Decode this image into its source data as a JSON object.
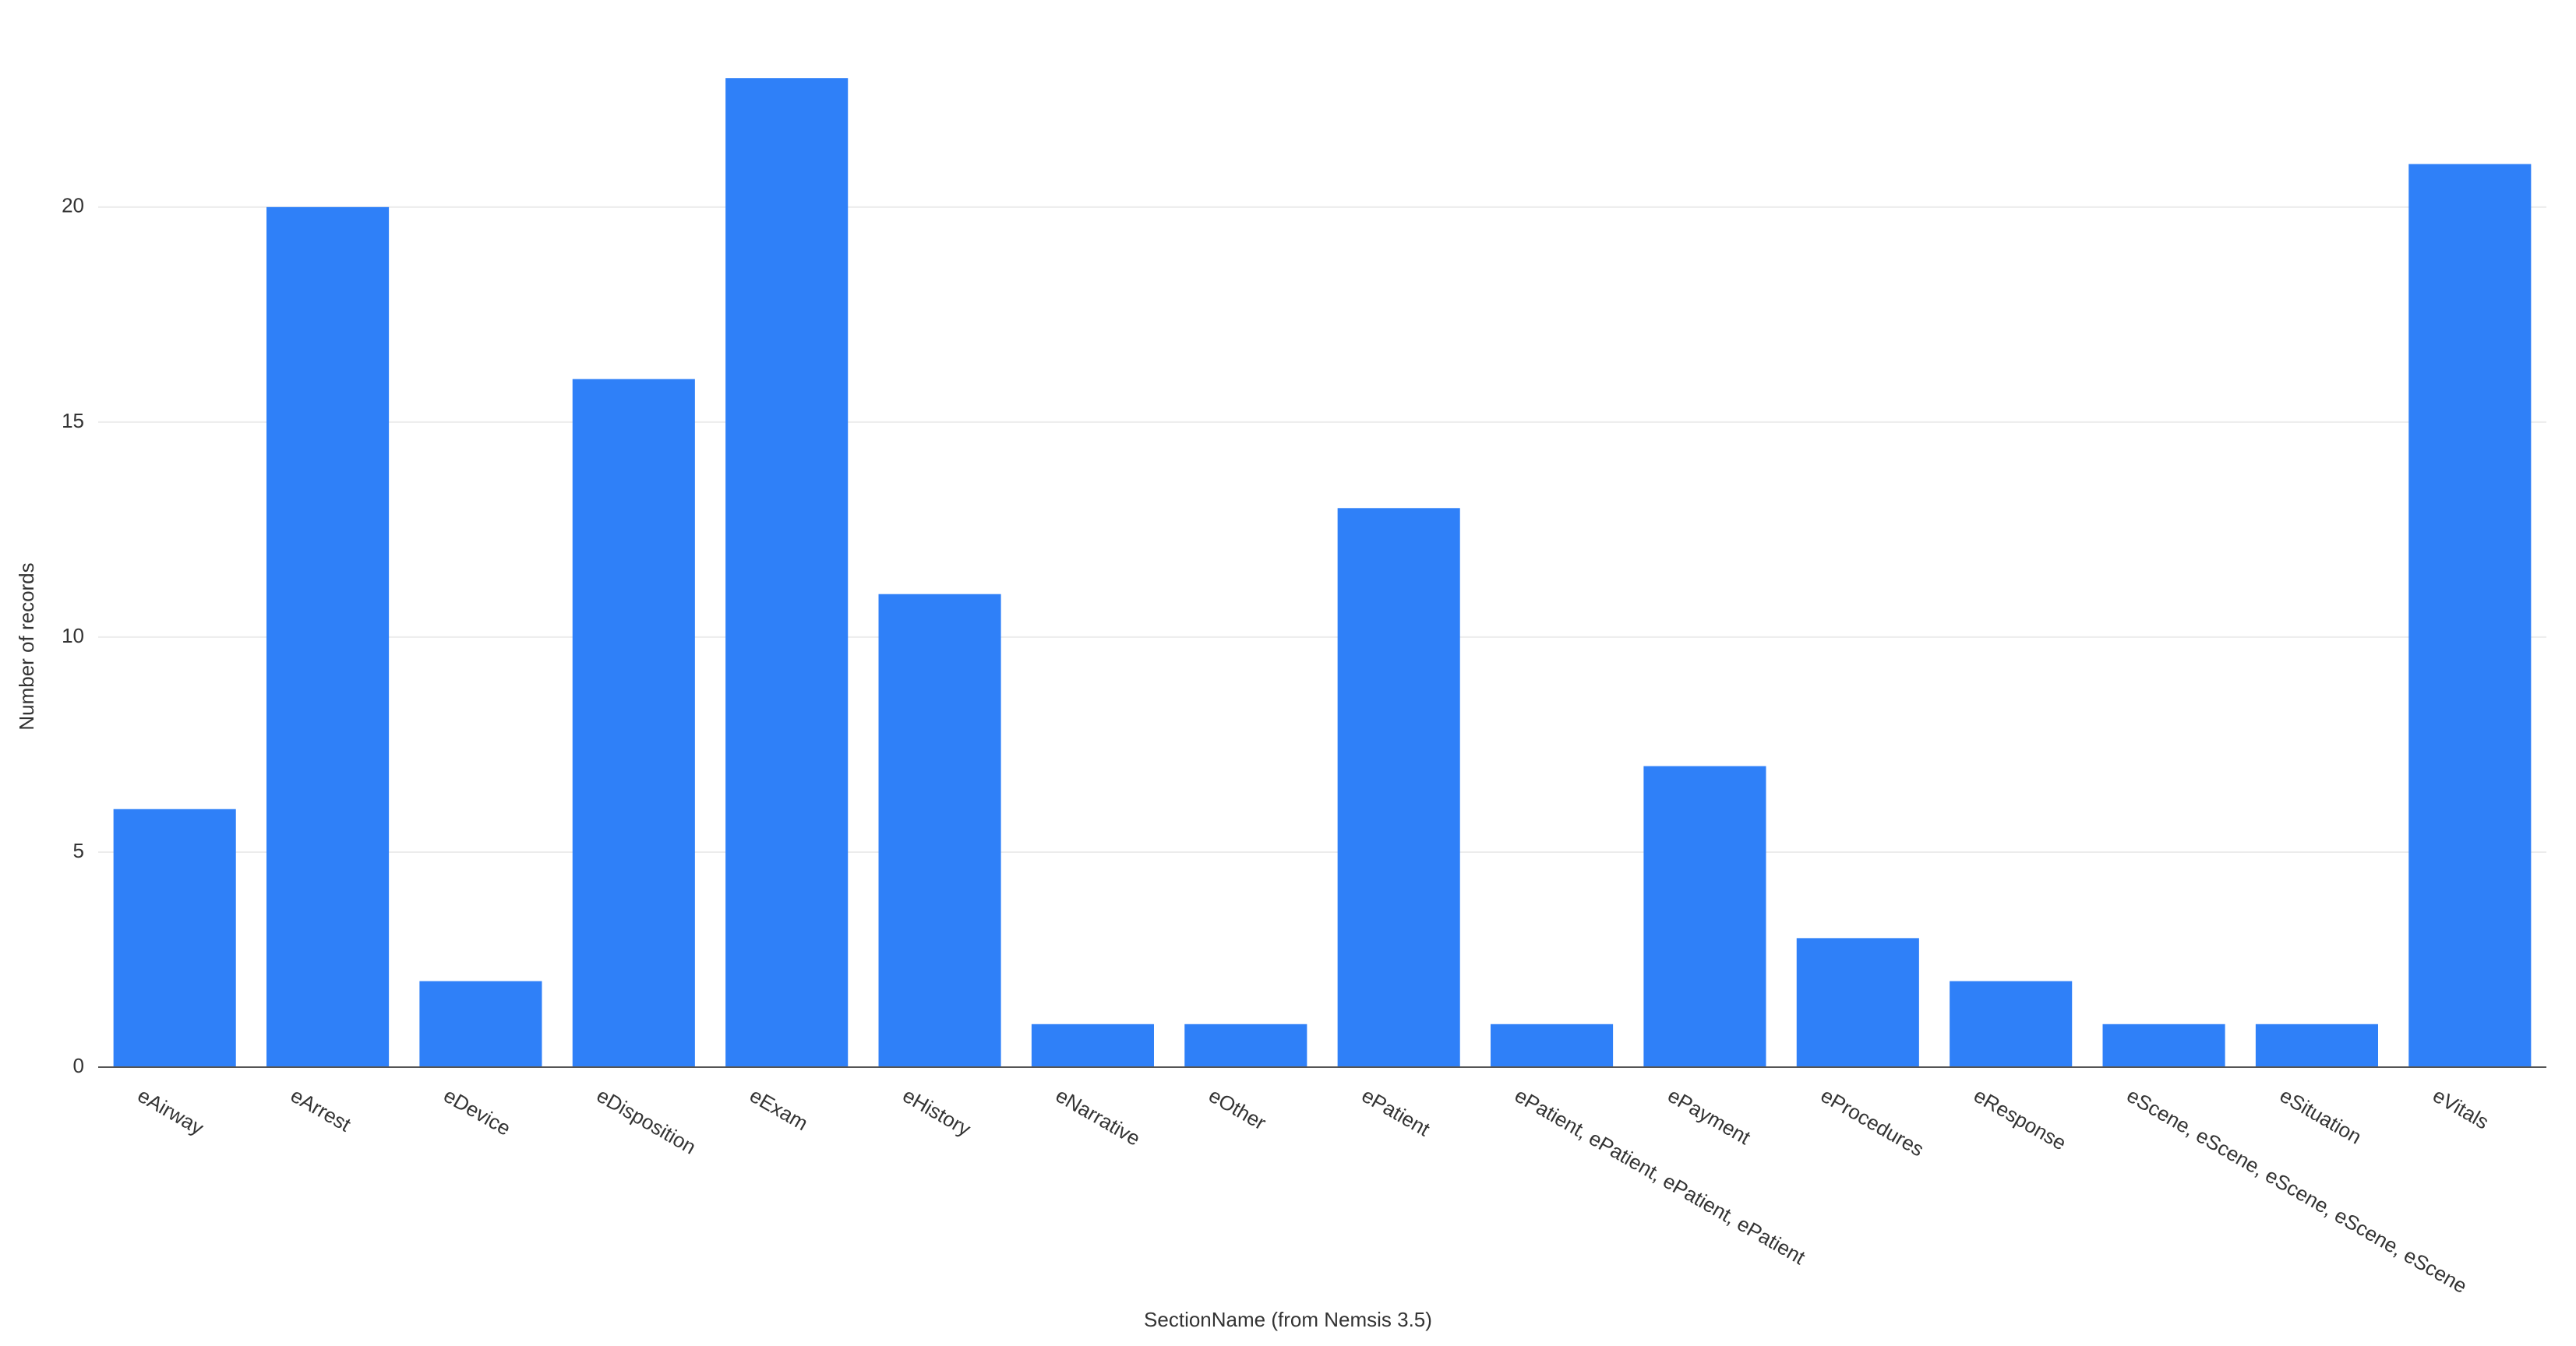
{
  "chart_data": {
    "type": "bar",
    "x_label": "SectionName (from Nemsis 3.5)",
    "y_label": "Number of records",
    "categories": [
      "eAirway",
      "eArrest",
      "eDevice",
      "eDisposition",
      "eExam",
      "eHistory",
      "eNarrative",
      "eOther",
      "ePatient",
      "ePatient, ePatient, ePatient, ePatient",
      "ePayment",
      "eProcedures",
      "eResponse",
      "eScene, eScene, eScene, eScene, eScene",
      "eSituation",
      "eVitals"
    ],
    "values": [
      6,
      20,
      2,
      16,
      23,
      11,
      1,
      1,
      13,
      1,
      7,
      3,
      2,
      1,
      1,
      21
    ],
    "color": "#2f80f8",
    "ylim": [
      0,
      24
    ],
    "yticks": [
      0,
      5,
      10,
      15,
      20
    ],
    "grid": true
  }
}
